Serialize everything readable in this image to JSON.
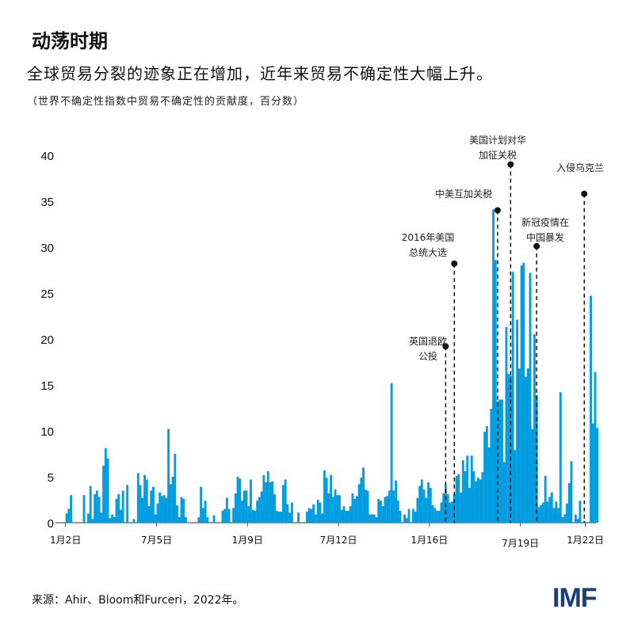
{
  "title": "动荡时期",
  "subtitle": "全球贸易分裂的迹象正在增加，近年来贸易不确定性大幅上升。",
  "note": "（世界不确定性指数中贸易不确定性的贡献度，百分数）",
  "source": "来源：Ahir、Bloom和Furceri，2022年。",
  "logo": "IMF",
  "chart_data": {
    "type": "bar",
    "frequency": "monthly",
    "x_start": "2002-01",
    "ylim": [
      0,
      40
    ],
    "yticks": [
      0,
      5,
      10,
      15,
      20,
      25,
      30,
      35,
      40
    ],
    "xticks": [
      {
        "label": "1月2日",
        "date": "2002-01"
      },
      {
        "label": "7月5日",
        "date": "2005-07"
      },
      {
        "label": "1月9日",
        "date": "2009-01"
      },
      {
        "label": "7月12日",
        "date": "2012-07"
      },
      {
        "label": "1月16日",
        "date": "2016-01"
      },
      {
        "label": "7月19日",
        "date": "2019-07"
      },
      {
        "label": "1月22日",
        "date": "2022-01"
      }
    ],
    "color": "#009ee0",
    "values": [
      1.0,
      1.5,
      3.0,
      0,
      0,
      0,
      0,
      0,
      3.0,
      0,
      1.0,
      4.0,
      0.4,
      3.1,
      3.5,
      2.8,
      1.1,
      6.2,
      8.1,
      7.0,
      0.5,
      0.9,
      0.6,
      2.6,
      3.1,
      1.4,
      3.5,
      0,
      4.1,
      0,
      0,
      0.4,
      0,
      5.4,
      4.1,
      2.7,
      5.2,
      4.7,
      1.8,
      3.5,
      3.9,
      0.9,
      2.1,
      3.3,
      2.9,
      3.0,
      2.7,
      10.2,
      4.2,
      5.0,
      7.5,
      1.9,
      0.6,
      2.8,
      2.6,
      0.6,
      0,
      0,
      0,
      0,
      0,
      0.6,
      3.9,
      1.6,
      2.4,
      0.6,
      0,
      0,
      0.8,
      0,
      0,
      0,
      1.3,
      1.5,
      2.7,
      1.5,
      0,
      1.6,
      3.2,
      5.0,
      4.8,
      2.4,
      3.5,
      3.5,
      1.8,
      4.7,
      1.4,
      1.3,
      2.4,
      2.8,
      3.4,
      5.2,
      4.4,
      5.6,
      4.4,
      4.5,
      3.1,
      1.3,
      1.2,
      1.2,
      4.1,
      4.7,
      2.0,
      1.1,
      2.2,
      0,
      0,
      1.1,
      0,
      0,
      0,
      1.2,
      1.6,
      1.5,
      2.0,
      0.9,
      2.5,
      2.2,
      1.0,
      5.7,
      4.9,
      3.2,
      5.2,
      2.8,
      3.6,
      3.0,
      3.0,
      1.4,
      1.8,
      1.3,
      1.3,
      1.8,
      3.2,
      2.6,
      2.9,
      4.2,
      4.9,
      6.0,
      3.6,
      3.5,
      0.9,
      0.9,
      0.9,
      0.6,
      2.6,
      2.4,
      1.8,
      2.8,
      2.9,
      3.5,
      15.2,
      3.5,
      4.6,
      2.4,
      1.3,
      0,
      0.9,
      0.5,
      1.5,
      0,
      1.5,
      1.2,
      2.7,
      4.0,
      4.7,
      3.6,
      2.7,
      4.4,
      3.8,
      1.9,
      1.6,
      1.3,
      1.3,
      2.2,
      3.2,
      4.1,
      3.1,
      2.2,
      2.3,
      3.1,
      5.1,
      5.3,
      3.3,
      6.8,
      5.6,
      7.3,
      3.8,
      7.3,
      5.6,
      4.5,
      4.9,
      4.7,
      5.5,
      9.9,
      10.5,
      8.2,
      12.4,
      34.1,
      28.6,
      13.2,
      13.4,
      13.4,
      6.6,
      21.3,
      16.2,
      16.0,
      27.3,
      7.9,
      22.1,
      16.8,
      28.0,
      28.3,
      15.9,
      16.8,
      27.2,
      10.2,
      20.5,
      13.9,
      1.7,
      1.9,
      2.2,
      5.1,
      2.3,
      2.8,
      3.3,
      1.6,
      2.3,
      1.6,
      14.2,
      0.6,
      0.9,
      2.1,
      4.3,
      6.7,
      0,
      0.9,
      0.4,
      2.4,
      0,
      0.2,
      0,
      0,
      24.7,
      10.8,
      16.4,
      10.3
    ],
    "annotations": [
      {
        "label": "英国退欧\n公投",
        "date": "2016-08",
        "value": 19.2
      },
      {
        "label": "2016年美国\n总统大选",
        "date": "2016-12",
        "value": 28.2
      },
      {
        "label": "中美互加关税",
        "date": "2018-08",
        "value": 34.0
      },
      {
        "label": "美国计划对华\n加征关税",
        "date": "2019-02",
        "value": 39.0
      },
      {
        "label": "新冠疫情在\n中国暴发",
        "date": "2020-02",
        "value": 30.1
      },
      {
        "label": "入侵乌克兰",
        "date": "2021-12",
        "value": 35.8
      }
    ]
  }
}
